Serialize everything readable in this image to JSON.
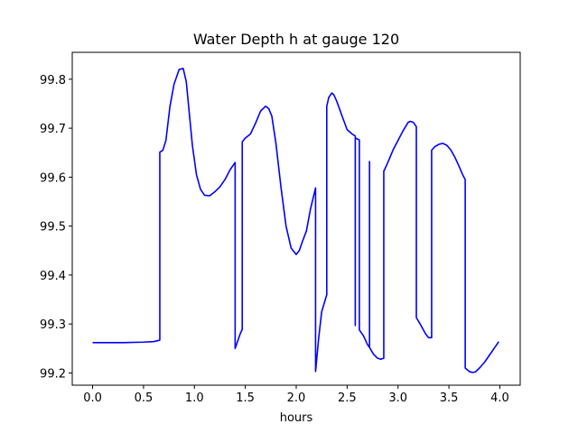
{
  "chart_data": {
    "type": "line",
    "title": "Water Depth h at gauge 120",
    "xlabel": "hours",
    "ylabel": "",
    "xlim": [
      -0.2,
      4.2
    ],
    "ylim": [
      99.175,
      99.855
    ],
    "xticks": [
      0.0,
      0.5,
      1.0,
      1.5,
      2.0,
      2.5,
      3.0,
      3.5,
      4.0
    ],
    "xtick_labels": [
      "0.0",
      "0.5",
      "1.0",
      "1.5",
      "2.0",
      "2.5",
      "3.0",
      "3.5",
      "4.0"
    ],
    "yticks": [
      99.2,
      99.3,
      99.4,
      99.5,
      99.6,
      99.7,
      99.8
    ],
    "ytick_labels": [
      "99.2",
      "99.3",
      "99.4",
      "99.5",
      "99.6",
      "99.7",
      "99.8"
    ],
    "grid": false,
    "legend": "none",
    "series": [
      {
        "color": "#0000ff",
        "x": [
          0.0,
          0.3,
          0.5,
          0.6,
          0.66,
          0.66,
          0.69,
          0.72,
          0.76,
          0.8,
          0.85,
          0.89,
          0.92,
          0.95,
          0.98,
          1.02,
          1.06,
          1.1,
          1.15,
          1.2,
          1.25,
          1.3,
          1.35,
          1.4,
          1.4,
          1.42,
          1.45,
          1.47,
          1.47,
          1.5,
          1.55,
          1.6,
          1.65,
          1.7,
          1.73,
          1.76,
          1.8,
          1.85,
          1.9,
          1.95,
          2.0,
          2.03,
          2.06,
          2.1,
          2.14,
          2.19,
          2.19,
          2.22,
          2.25,
          2.3,
          2.3,
          2.32,
          2.35,
          2.37,
          2.4,
          2.45,
          2.5,
          2.55,
          2.58,
          2.58,
          2.58,
          2.62,
          2.62,
          2.66,
          2.7,
          2.72,
          2.72,
          2.72,
          2.76,
          2.8,
          2.83,
          2.86,
          2.86,
          2.9,
          2.95,
          3.0,
          3.05,
          3.1,
          3.12,
          3.15,
          3.18,
          3.18,
          3.22,
          3.27,
          3.3,
          3.33,
          3.33,
          3.36,
          3.4,
          3.44,
          3.48,
          3.52,
          3.56,
          3.6,
          3.63,
          3.66,
          3.66,
          3.7,
          3.73,
          3.76,
          3.8,
          3.85,
          3.9,
          3.95,
          3.99
        ],
        "y": [
          99.262,
          99.262,
          99.263,
          99.264,
          99.267,
          99.651,
          99.655,
          99.675,
          99.745,
          99.79,
          99.82,
          99.822,
          99.795,
          99.73,
          99.665,
          99.605,
          99.575,
          99.563,
          99.562,
          99.57,
          99.58,
          99.595,
          99.615,
          99.63,
          99.25,
          99.262,
          99.28,
          99.289,
          99.672,
          99.68,
          99.688,
          99.71,
          99.735,
          99.745,
          99.74,
          99.725,
          99.67,
          99.58,
          99.5,
          99.455,
          99.442,
          99.45,
          99.468,
          99.49,
          99.535,
          99.578,
          99.203,
          99.27,
          99.325,
          99.36,
          99.745,
          99.763,
          99.772,
          99.768,
          99.754,
          99.725,
          99.697,
          99.688,
          99.684,
          99.297,
          99.68,
          99.676,
          99.288,
          99.276,
          99.258,
          99.252,
          99.632,
          99.252,
          99.238,
          99.23,
          99.228,
          99.23,
          99.612,
          99.63,
          99.655,
          99.675,
          99.695,
          99.712,
          99.714,
          99.712,
          99.703,
          99.313,
          99.299,
          99.28,
          99.272,
          99.272,
          99.655,
          99.662,
          99.667,
          99.669,
          99.665,
          99.655,
          99.64,
          99.622,
          99.607,
          99.595,
          99.21,
          99.203,
          99.201,
          99.202,
          99.21,
          99.222,
          99.237,
          99.252,
          99.264
        ]
      }
    ]
  }
}
